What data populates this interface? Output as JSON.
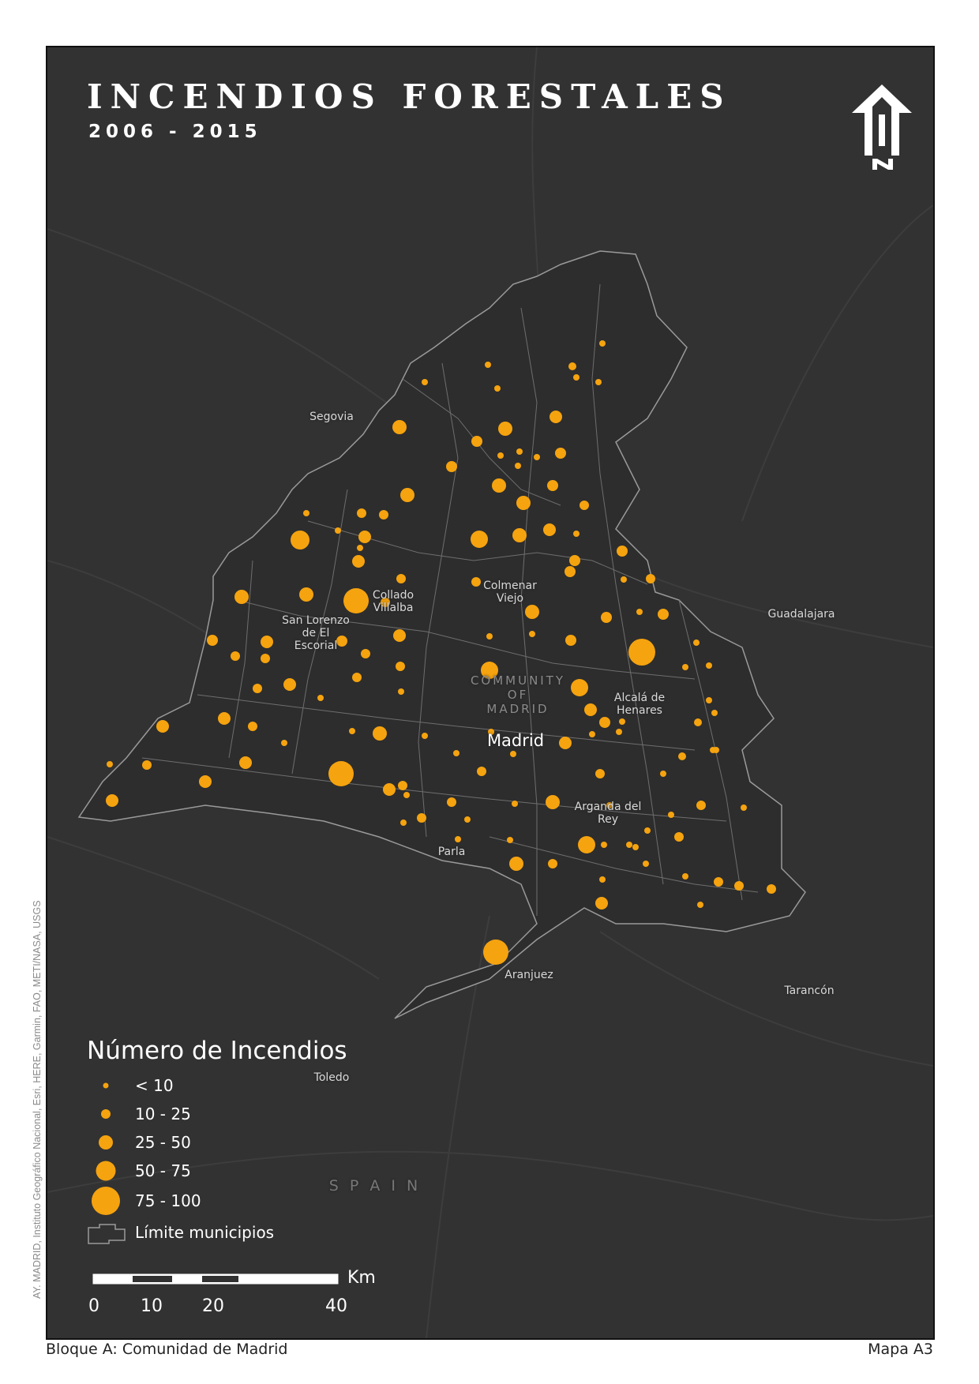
{
  "title": "INCENDIOS FORESTALES",
  "subtitle": "2006 - 2015",
  "attribution": "AY. MADRID, Instituto Geográfico Nacional, Esri, HERE, Garmin, FAO, METI/NASA, USGS",
  "footer": {
    "left": "Bloque A: Comunidad de Madrid",
    "right": "Mapa A3"
  },
  "colors": {
    "background": "#323232",
    "fire_point": "#f5a30f",
    "boundary": "#8c8c8c",
    "text": "#ffffff"
  },
  "north_arrow": "north-arrow-icon",
  "legend": {
    "title": "Número de Incendios",
    "classes": [
      {
        "label": "< 10"
      },
      {
        "label": "10 - 25"
      },
      {
        "label": "25 - 50"
      },
      {
        "label": "50 - 75"
      },
      {
        "label": "75 - 100"
      }
    ],
    "boundary_label": "Límite municipios"
  },
  "scale": {
    "ticks": [
      "0",
      "10",
      "20",
      "40"
    ],
    "unit": "Km"
  },
  "place_labels": {
    "segovia": "Segovia",
    "colmenar": "Colmenar\nViejo",
    "collado": "Collado\nVillalba",
    "sanlorenzo": "San Lorenzo\nde El\nEscorial",
    "guadalajara": "Guadalajara",
    "community": "COMMUNITY\nOF\nMADRID",
    "madrid": "Madrid",
    "alcala": "Alcalá de\nHenares",
    "arganda": "Arganda del\nRey",
    "parla": "Parla",
    "aranjuez": "Aranjuez",
    "tarancon": "Tarancón",
    "toledo": "Toledo",
    "spain": "S P A I N"
  }
}
